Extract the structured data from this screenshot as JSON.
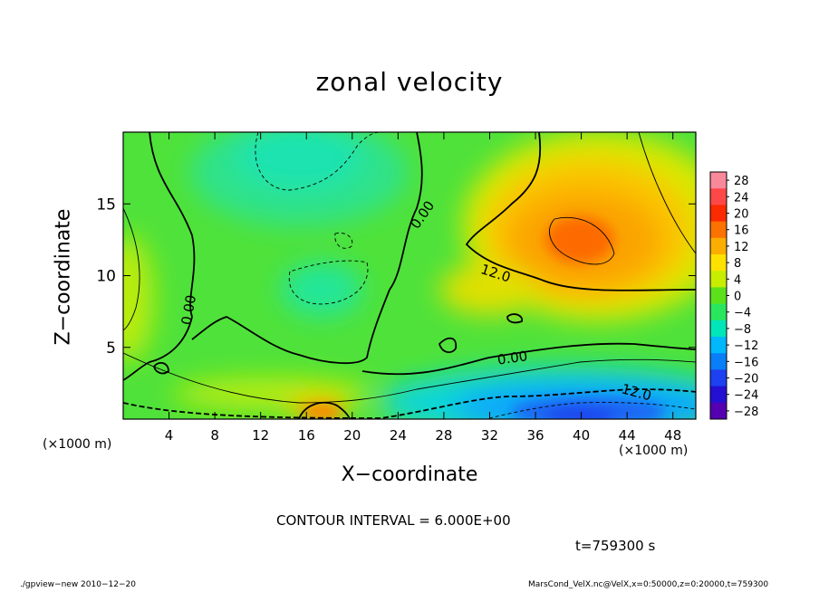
{
  "chart_data": {
    "type": "heatmap",
    "title": "zonal velocity",
    "xlabel": "X−coordinate",
    "ylabel": "Z−coordinate",
    "x_unit_left": "(×1000 m)",
    "x_unit_right": "(×1000 m)",
    "xlim": [
      0,
      50
    ],
    "ylim": [
      0,
      20
    ],
    "x_ticks": [
      4,
      8,
      12,
      16,
      20,
      24,
      28,
      32,
      36,
      40,
      44,
      48
    ],
    "y_ticks": [
      5,
      10,
      15
    ],
    "colorbar": {
      "levels": [
        28,
        24,
        20,
        16,
        12,
        8,
        4,
        0,
        -4,
        -8,
        -12,
        -16,
        -20,
        -24,
        -28
      ],
      "labels": [
        "28",
        "24",
        "20",
        "16",
        "12",
        "8",
        "4",
        "0",
        "−4",
        "−8",
        "−12",
        "−16",
        "−20",
        "−24",
        "−28"
      ],
      "colors": [
        "#f9899a",
        "#fe4848",
        "#fc2a00",
        "#fc7200",
        "#fbae00",
        "#fde200",
        "#c7ee00",
        "#5be11b",
        "#2ae65f",
        "#00e6b9",
        "#00b8fb",
        "#0a7ef8",
        "#1d40f0",
        "#2310d3",
        "#5400b0"
      ]
    },
    "contour_labels": [
      {
        "text": "0.00",
        "x": 26.2,
        "z": 14.2,
        "rotate": -55
      },
      {
        "text": "12.0",
        "x": 32.5,
        "z": 10.1,
        "rotate": 18
      },
      {
        "text": "0.00",
        "x": 34.0,
        "z": 4.2,
        "rotate": -8
      },
      {
        "text": "12.0",
        "x": 44.8,
        "z": 1.8,
        "rotate": 15
      },
      {
        "text": "0.00",
        "x": 5.8,
        "z": 7.6,
        "rotate": -80
      }
    ],
    "grid": false,
    "legend": "right"
  },
  "text": {
    "contour_interval": "CONTOUR INTERVAL = 6.000E+00",
    "time": "t=759300 s",
    "footer_left": "./gpview−new   2010−12−20",
    "footer_right": "MarsCond_VelX.nc@VelX,x=0:50000,z=0:20000,t=759300"
  }
}
